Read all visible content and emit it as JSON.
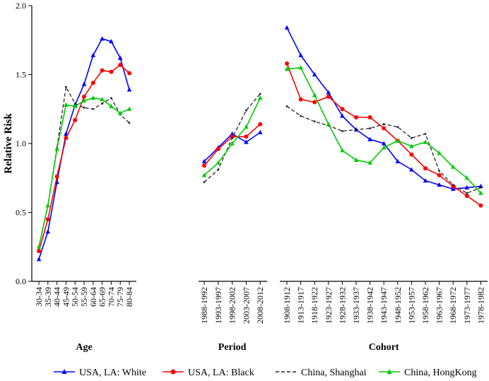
{
  "chart_data": {
    "type": "line",
    "ylabel": "Relative Risk",
    "ylim": [
      0.0,
      2.0
    ],
    "yticks": [
      "0.0",
      "0.5",
      "1.0",
      "1.5",
      "2.0"
    ],
    "grid": false,
    "legend_position": "bottom",
    "panels": [
      {
        "name": "Age",
        "categories": [
          "30-34",
          "35-39",
          "40-44",
          "45-49",
          "50-54",
          "55-59",
          "60-64",
          "65-69",
          "70-74",
          "75-79",
          "80-84"
        ],
        "series": [
          {
            "name": "USA, LA: White",
            "color": "#0000ff",
            "marker": "triangle",
            "dash": false,
            "values": [
              0.16,
              0.36,
              0.72,
              1.07,
              1.28,
              1.43,
              1.64,
              1.76,
              1.74,
              1.62,
              1.39
            ]
          },
          {
            "name": "USA, LA: Black",
            "color": "#ff0000",
            "marker": "circle",
            "dash": false,
            "values": [
              0.22,
              0.45,
              0.76,
              1.04,
              1.17,
              1.34,
              1.44,
              1.53,
              1.52,
              1.57,
              1.51
            ]
          },
          {
            "name": "China, Shanghai",
            "color": "#222222",
            "marker": "none",
            "dash": true,
            "values": [
              0.25,
              0.55,
              0.97,
              1.41,
              1.29,
              1.26,
              1.25,
              1.29,
              1.33,
              1.21,
              1.15
            ]
          },
          {
            "name": "China, HongKong",
            "color": "#00cc00",
            "marker": "triangle",
            "dash": false,
            "values": [
              0.25,
              0.55,
              0.96,
              1.28,
              1.27,
              1.31,
              1.33,
              1.32,
              1.27,
              1.22,
              1.25
            ]
          }
        ]
      },
      {
        "name": "Period",
        "categories": [
          "1988-1992",
          "1993-1997",
          "1998-2002",
          "2003-2007",
          "2008-2012"
        ],
        "series": [
          {
            "name": "USA, LA: White",
            "color": "#0000ff",
            "marker": "triangle",
            "dash": false,
            "values": [
              0.87,
              0.97,
              1.07,
              1.01,
              1.08
            ]
          },
          {
            "name": "USA, LA: Black",
            "color": "#ff0000",
            "marker": "circle",
            "dash": false,
            "values": [
              0.84,
              0.96,
              1.05,
              1.05,
              1.14
            ]
          },
          {
            "name": "China, Shanghai",
            "color": "#222222",
            "marker": "none",
            "dash": true,
            "values": [
              0.72,
              0.81,
              1.04,
              1.24,
              1.36
            ]
          },
          {
            "name": "China, HongKong",
            "color": "#00cc00",
            "marker": "triangle",
            "dash": false,
            "values": [
              0.77,
              0.86,
              1.0,
              1.12,
              1.33
            ]
          }
        ]
      },
      {
        "name": "Cohort",
        "categories": [
          "1908-1912",
          "1913-1917",
          "1918-1922",
          "1923-1927",
          "1928-1932",
          "1933-1937",
          "1938-1942",
          "1943-1947",
          "1948-1952",
          "1953-1957",
          "1958-1962",
          "1963-1967",
          "1968-1972",
          "1973-1977",
          "1978-1982"
        ],
        "series": [
          {
            "name": "USA, LA: White",
            "color": "#0000ff",
            "marker": "triangle",
            "dash": false,
            "values": [
              1.84,
              1.64,
              1.5,
              1.37,
              1.2,
              1.1,
              1.03,
              1.0,
              0.87,
              0.81,
              0.73,
              0.7,
              0.67,
              0.68,
              0.69
            ]
          },
          {
            "name": "USA, LA: Black",
            "color": "#ff0000",
            "marker": "circle",
            "dash": false,
            "values": [
              1.58,
              1.32,
              1.3,
              1.34,
              1.25,
              1.19,
              1.19,
              1.11,
              1.02,
              0.92,
              0.82,
              0.77,
              0.69,
              0.62,
              0.55
            ]
          },
          {
            "name": "China, Shanghai",
            "color": "#222222",
            "marker": "none",
            "dash": true,
            "values": [
              1.27,
              1.2,
              1.16,
              1.13,
              1.09,
              1.1,
              1.11,
              1.14,
              1.12,
              1.04,
              1.07,
              0.8,
              0.7,
              0.64,
              0.68
            ]
          },
          {
            "name": "China, HongKong",
            "color": "#00cc00",
            "marker": "triangle",
            "dash": false,
            "values": [
              1.54,
              1.55,
              1.35,
              1.14,
              0.95,
              0.88,
              0.86,
              0.97,
              1.02,
              0.98,
              1.01,
              0.93,
              0.83,
              0.75,
              0.64
            ]
          }
        ]
      }
    ],
    "legend": [
      {
        "name": "USA, LA: White",
        "color": "#0000ff",
        "marker": "triangle",
        "dash": false
      },
      {
        "name": "USA, LA: Black",
        "color": "#ff0000",
        "marker": "circle",
        "dash": false
      },
      {
        "name": "China, Shanghai",
        "color": "#222222",
        "marker": "none",
        "dash": true
      },
      {
        "name": "China, HongKong",
        "color": "#00cc00",
        "marker": "triangle",
        "dash": false
      }
    ]
  }
}
